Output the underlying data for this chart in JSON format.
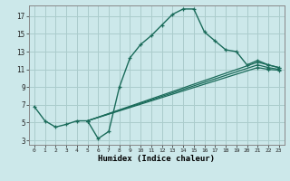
{
  "title": "",
  "xlabel": "Humidex (Indice chaleur)",
  "background_color": "#cce8ea",
  "grid_color": "#aacccc",
  "line_color": "#1a6b5a",
  "xlim": [
    -0.5,
    23.5
  ],
  "ylim": [
    2.5,
    18.2
  ],
  "xticks": [
    0,
    1,
    2,
    3,
    4,
    5,
    6,
    7,
    8,
    9,
    10,
    11,
    12,
    13,
    14,
    15,
    16,
    17,
    18,
    19,
    20,
    21,
    22,
    23
  ],
  "yticks": [
    3,
    5,
    7,
    9,
    11,
    13,
    15,
    17
  ],
  "series": [
    {
      "x": [
        0,
        1,
        2,
        3,
        4,
        5,
        6,
        7,
        8,
        9,
        10,
        11,
        12,
        13,
        14,
        15,
        16,
        17,
        18,
        19,
        20,
        21,
        22,
        23
      ],
      "y": [
        6.8,
        5.2,
        4.5,
        4.8,
        5.2,
        5.2,
        3.2,
        4.0,
        9.0,
        12.3,
        13.8,
        14.8,
        16.0,
        17.2,
        17.8,
        17.8,
        15.2,
        14.2,
        13.2,
        13.0,
        11.5,
        12.0,
        11.5,
        11.2
      ]
    },
    {
      "x": [
        5,
        21,
        22,
        23
      ],
      "y": [
        5.2,
        11.8,
        11.5,
        11.2
      ]
    },
    {
      "x": [
        5,
        21,
        22,
        23
      ],
      "y": [
        5.2,
        11.5,
        11.2,
        11.0
      ]
    },
    {
      "x": [
        5,
        21,
        22,
        23
      ],
      "y": [
        5.2,
        11.2,
        11.0,
        10.9
      ]
    }
  ]
}
